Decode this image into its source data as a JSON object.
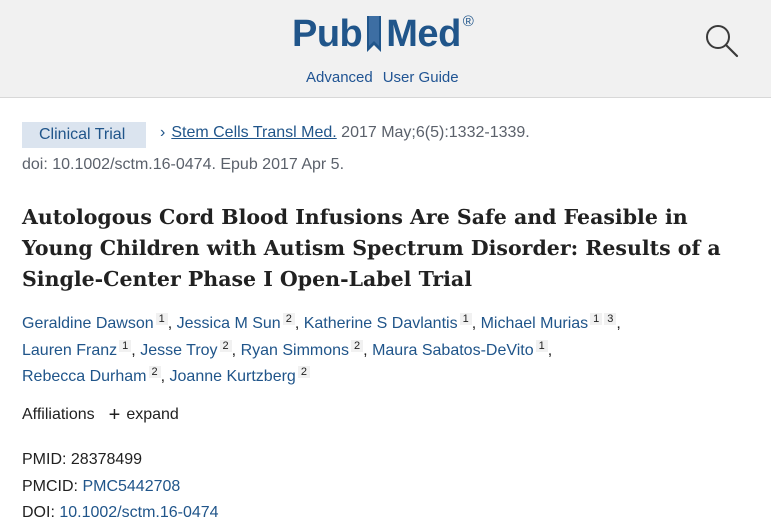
{
  "header": {
    "logo_left": "Pub",
    "logo_right": "Med",
    "logo_reg": "®",
    "advanced_link": "Advanced",
    "user_guide_link": "User Guide",
    "brand_color": "#20558a",
    "search_icon": "search-icon"
  },
  "article": {
    "type_badge": "Clinical Trial",
    "chevron": "›",
    "journal": "Stem Cells Transl Med.",
    "citation_rest": " 2017 May;6(5):1332-1339.",
    "doi_line": "doi: 10.1002/sctm.16-0474. Epub 2017 Apr 5.",
    "title": "Autologous Cord Blood Infusions Are Safe and Feasible in Young Children with Autism Spectrum Disorder: Results of a Single-Center Phase I Open-Label Trial",
    "authors": [
      {
        "name": "Geraldine Dawson",
        "sups": [
          "1"
        ]
      },
      {
        "name": "Jessica M Sun",
        "sups": [
          "2"
        ]
      },
      {
        "name": "Katherine S Davlantis",
        "sups": [
          "1"
        ]
      },
      {
        "name": "Michael Murias",
        "sups": [
          "1",
          "3"
        ]
      },
      {
        "name": "Lauren Franz",
        "sups": [
          "1"
        ]
      },
      {
        "name": "Jesse Troy",
        "sups": [
          "2"
        ]
      },
      {
        "name": "Ryan Simmons",
        "sups": [
          "2"
        ]
      },
      {
        "name": "Maura Sabatos-DeVito",
        "sups": [
          "1"
        ]
      },
      {
        "name": "Rebecca Durham",
        "sups": [
          "2"
        ]
      },
      {
        "name": "Joanne Kurtzberg",
        "sups": [
          "2"
        ]
      }
    ],
    "affiliations_label": "Affiliations",
    "affiliations_plus": "+",
    "affiliations_expand": "expand",
    "pmid_label": "PMID: ",
    "pmid": "28378499",
    "pmcid_label": "PMCID: ",
    "pmcid": "PMC5442708",
    "doi_label": "DOI: ",
    "doi": "10.1002/sctm.16-0474"
  }
}
